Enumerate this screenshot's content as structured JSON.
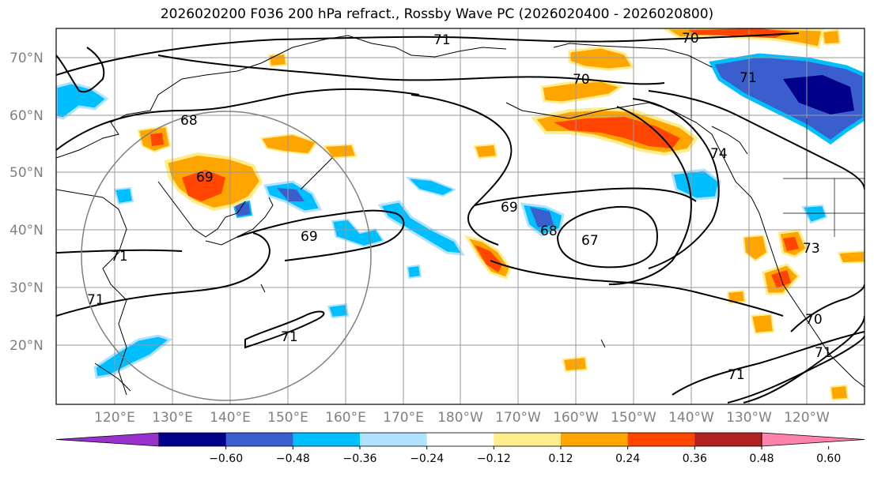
{
  "title": "2026020200 F036 200 hPa refract., Rossby Wave PC (2026020400 - 2026020800)",
  "lat_labels": [
    "70°N",
    "60°N",
    "50°N",
    "40°N",
    "30°N",
    "20°N"
  ],
  "lon_labels": [
    "120°E",
    "130°E",
    "140°E",
    "150°E",
    "160°E",
    "170°E",
    "180°W",
    "170°W",
    "160°W",
    "150°W",
    "140°W",
    "130°W",
    "120°W"
  ],
  "colorbar": {
    "colors": [
      "#9932cc",
      "#00008b",
      "#3a5fcd",
      "#00bfff",
      "#b0e2ff",
      "#ffffff",
      "#ffec8b",
      "#ffa500",
      "#ff4500",
      "#b22222",
      "#ff82ab"
    ],
    "labels": [
      "−0.60",
      "−0.48",
      "−0.36",
      "−0.24",
      "−0.12",
      "0.12",
      "0.24",
      "0.36",
      "0.48",
      "0.60"
    ]
  },
  "contour_labels": [
    "71",
    "70",
    "70",
    "71",
    "68",
    "69",
    "69",
    "69",
    "68",
    "67",
    "74",
    "73",
    "70",
    "71",
    "71",
    "71",
    "71",
    "71"
  ],
  "colors": {
    "frame": "#000000",
    "grid": "#999999",
    "coast": "#000000",
    "contour": "#000000",
    "circle": "#808080"
  }
}
